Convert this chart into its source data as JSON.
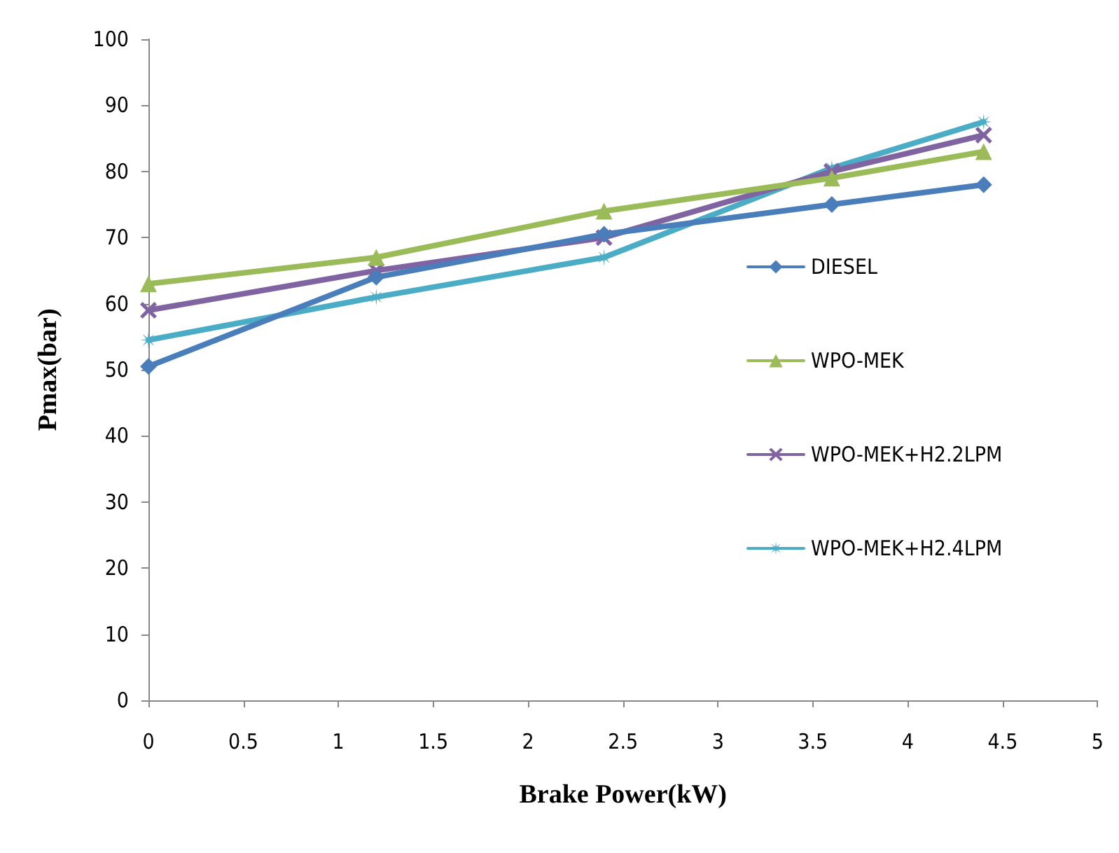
{
  "chart_data": {
    "type": "line",
    "xlabel": "Brake Power(kW)",
    "ylabel": "Pmax(bar)",
    "x": [
      0,
      1.2,
      2.4,
      3.6,
      4.4
    ],
    "series": [
      {
        "name": "DIESEL",
        "color": "#4a7ebb",
        "marker": "diamond",
        "values": [
          50.5,
          64,
          70.5,
          75,
          78
        ]
      },
      {
        "name": "WPO-MEK",
        "color": "#9bbb59",
        "marker": "triangle",
        "values": [
          63,
          67,
          74,
          79,
          83
        ]
      },
      {
        "name": "WPO-MEK+H2.2LPM",
        "color": "#8064a2",
        "marker": "cross",
        "values": [
          59,
          65,
          70,
          80,
          85.5
        ]
      },
      {
        "name": "WPO-MEK+H2.4LPM",
        "color": "#4bacc6",
        "marker": "star",
        "values": [
          54.5,
          61,
          67,
          80.5,
          87.5
        ]
      }
    ],
    "xlim": [
      0,
      5
    ],
    "xticks": [
      0,
      0.5,
      1,
      1.5,
      2,
      2.5,
      3,
      3.5,
      4,
      4.5,
      5
    ],
    "ylim": [
      0,
      100
    ],
    "yticks": [
      0,
      10,
      20,
      30,
      40,
      50,
      60,
      70,
      80,
      90,
      100
    ],
    "grid": false,
    "legend": "right",
    "line_style": "solid"
  }
}
